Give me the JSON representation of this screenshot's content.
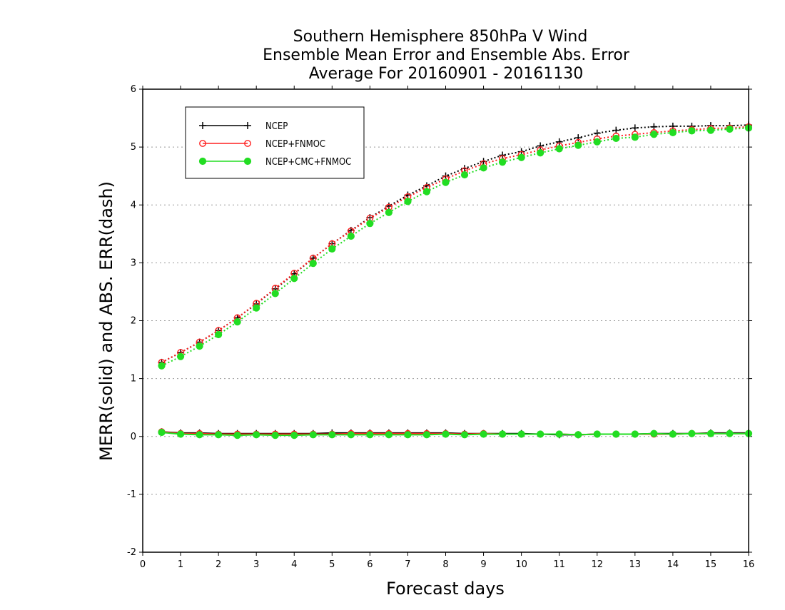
{
  "chart_data": {
    "type": "line",
    "title_lines": [
      "Southern Hemisphere 850hPa V Wind",
      "Ensemble Mean Error and Ensemble Abs. Error",
      "Average For 20160901 - 20161130"
    ],
    "xlabel": "Forecast days",
    "ylabel": "MERR(solid) and ABS. ERR(dash)",
    "xlim": [
      0,
      16
    ],
    "ylim": [
      -2,
      6
    ],
    "xticks": [
      0,
      1,
      2,
      3,
      4,
      5,
      6,
      7,
      8,
      9,
      10,
      11,
      12,
      13,
      14,
      15,
      16
    ],
    "xtick_labels": [
      "0",
      "1",
      "2",
      "3",
      "4",
      "5",
      "6",
      "7",
      "8",
      "9",
      "10",
      "11",
      "12",
      "13",
      "14",
      "15",
      "16"
    ],
    "yticks": [
      -2,
      -1,
      0,
      1,
      2,
      3,
      4,
      5,
      6
    ],
    "ytick_labels": [
      "-2",
      "-1",
      "0",
      "1",
      "2",
      "3",
      "4",
      "5",
      "6"
    ],
    "grid": "horizontal dotted",
    "legend_position": "top-left",
    "x": [
      0.5,
      1,
      1.5,
      2,
      2.5,
      3,
      3.5,
      4,
      4.5,
      5,
      5.5,
      6,
      6.5,
      7,
      7.5,
      8,
      8.5,
      9,
      9.5,
      10,
      10.5,
      11,
      11.5,
      12,
      12.5,
      13,
      13.5,
      14,
      14.5,
      15,
      15.5,
      16
    ],
    "series": [
      {
        "name": "NCEP",
        "color": "#000000",
        "marker": "plus",
        "abs_err": [
          1.28,
          1.45,
          1.63,
          1.83,
          2.05,
          2.29,
          2.55,
          2.81,
          3.08,
          3.33,
          3.56,
          3.78,
          3.98,
          4.17,
          4.33,
          4.5,
          4.63,
          4.75,
          4.86,
          4.92,
          5.02,
          5.09,
          5.16,
          5.24,
          5.29,
          5.33,
          5.35,
          5.36,
          5.36,
          5.37,
          5.37,
          5.38
        ],
        "mean_err": [
          0.08,
          0.06,
          0.06,
          0.05,
          0.05,
          0.05,
          0.05,
          0.05,
          0.05,
          0.06,
          0.06,
          0.06,
          0.06,
          0.06,
          0.06,
          0.06,
          0.05,
          0.05,
          0.05,
          0.05,
          0.04,
          0.03,
          0.03,
          0.04,
          0.04,
          0.04,
          0.05,
          0.05,
          0.05,
          0.06,
          0.06,
          0.06
        ]
      },
      {
        "name": "NCEP+FNMOC",
        "color": "#ff2020",
        "marker": "open-circle",
        "abs_err": [
          1.28,
          1.45,
          1.63,
          1.83,
          2.05,
          2.3,
          2.56,
          2.82,
          3.08,
          3.33,
          3.55,
          3.77,
          3.96,
          4.14,
          4.3,
          4.45,
          4.59,
          4.71,
          4.8,
          4.87,
          4.95,
          5.02,
          5.08,
          5.14,
          5.19,
          5.22,
          5.25,
          5.28,
          5.3,
          5.32,
          5.33,
          5.35
        ],
        "mean_err": [
          0.08,
          0.05,
          0.05,
          0.04,
          0.04,
          0.04,
          0.04,
          0.04,
          0.04,
          0.04,
          0.05,
          0.05,
          0.05,
          0.05,
          0.05,
          0.05,
          0.04,
          0.05,
          0.04,
          0.04,
          0.04,
          0.04,
          0.03,
          0.04,
          0.04,
          0.04,
          0.04,
          0.04,
          0.05,
          0.05,
          0.05,
          0.05
        ]
      },
      {
        "name": "NCEP+CMC+FNMOC",
        "color": "#22dd22",
        "marker": "filled-circle",
        "abs_err": [
          1.22,
          1.38,
          1.56,
          1.76,
          1.98,
          2.22,
          2.47,
          2.73,
          2.99,
          3.24,
          3.46,
          3.68,
          3.87,
          4.06,
          4.23,
          4.39,
          4.52,
          4.64,
          4.74,
          4.82,
          4.9,
          4.97,
          5.03,
          5.09,
          5.15,
          5.17,
          5.22,
          5.25,
          5.28,
          5.29,
          5.31,
          5.33
        ],
        "mean_err": [
          0.07,
          0.04,
          0.03,
          0.03,
          0.02,
          0.03,
          0.02,
          0.02,
          0.03,
          0.03,
          0.03,
          0.03,
          0.03,
          0.03,
          0.03,
          0.04,
          0.03,
          0.04,
          0.04,
          0.04,
          0.04,
          0.04,
          0.03,
          0.04,
          0.04,
          0.04,
          0.05,
          0.04,
          0.05,
          0.05,
          0.05,
          0.05
        ]
      }
    ]
  }
}
